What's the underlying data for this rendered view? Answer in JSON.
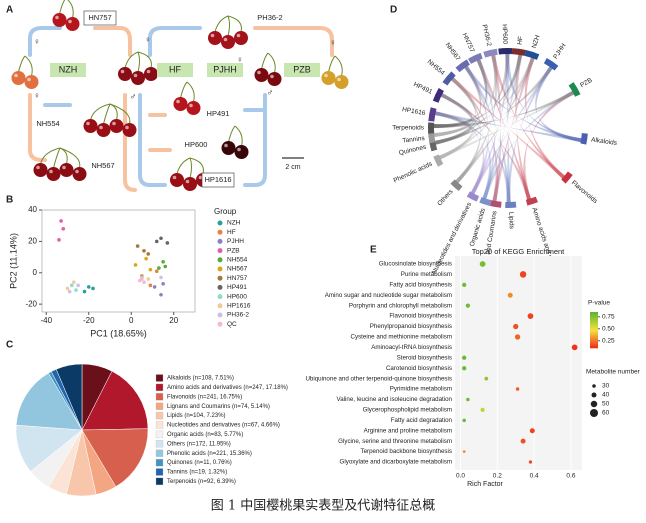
{
  "panel_a": {
    "letter": "A",
    "labels": [
      "HN757",
      "NZH",
      "HF",
      "PJHH",
      "PH36-2",
      "PZB",
      "NH554",
      "NH567",
      "HP491",
      "HP600",
      "HP1616"
    ],
    "symbols": [
      "♀",
      "♀",
      "♀",
      "♂",
      "♀",
      "♂",
      "♀"
    ],
    "scale_bar": "2 cm"
  },
  "panel_d": {
    "letter": "D",
    "genotypes": [
      "HP1616",
      "HP491",
      "NH554",
      "NH567",
      "HN757",
      "PH36-2",
      "HP600",
      "HF",
      "NZH",
      "PJHH",
      "PZB"
    ],
    "metabolites": [
      "Alkaloids",
      "Flavonoids",
      "Amino acids and derivatives",
      "Lipids",
      "Lignans and Coumarins",
      "Organic acids",
      "Nucleotides and derivatives",
      "Others",
      "Phenolic acids",
      "Quinones",
      "Tannins",
      "Terpenoids"
    ]
  },
  "caption": "图 1 中国樱桃果实表型及代谢特征总概",
  "chart_data": [
    {
      "type": "scatter",
      "panel": "B",
      "x_label": "PC1 (18.65%)",
      "y_label": "PC2 (11.14%)",
      "legend_title": "Group",
      "xlim": [
        -42,
        30
      ],
      "ylim": [
        -25,
        40
      ],
      "xticks": [
        -40,
        -20,
        0,
        20
      ],
      "yticks": [
        -20,
        0,
        20,
        40
      ],
      "series": [
        {
          "name": "NZH",
          "color": "#2aa198",
          "x": [
            -22,
            -20,
            -18
          ],
          "values": [
            -12,
            -9,
            -10
          ]
        },
        {
          "name": "HF",
          "color": "#e8833a",
          "x": [
            5,
            9,
            12
          ],
          "values": [
            -2,
            -8,
            1
          ]
        },
        {
          "name": "PJHH",
          "color": "#8c7fc6",
          "x": [
            11,
            14,
            15
          ],
          "values": [
            -9,
            -14,
            -7
          ]
        },
        {
          "name": "PZB",
          "color": "#e05fa6",
          "x": [
            -33,
            -32,
            -34
          ],
          "values": [
            33,
            28,
            21
          ]
        },
        {
          "name": "NH554",
          "color": "#5aaa3a",
          "x": [
            13,
            15,
            16
          ],
          "values": [
            3,
            7,
            4
          ]
        },
        {
          "name": "NH567",
          "color": "#d6a61e",
          "x": [
            2,
            7,
            9
          ],
          "values": [
            5,
            9,
            2
          ]
        },
        {
          "name": "HN757",
          "color": "#a07a3a",
          "x": [
            6,
            8,
            3
          ],
          "values": [
            14,
            12,
            17
          ]
        },
        {
          "name": "HP491",
          "color": "#666666",
          "x": [
            14,
            17,
            12
          ],
          "values": [
            22,
            19,
            20
          ]
        },
        {
          "name": "HP600",
          "color": "#8fdcc8",
          "x": [
            -28,
            -26,
            5
          ],
          "values": [
            -8,
            -11,
            -3
          ]
        },
        {
          "name": "HP1616",
          "color": "#f6c79a",
          "x": [
            -30,
            -27,
            8
          ],
          "values": [
            -10,
            -6,
            -4
          ]
        },
        {
          "name": "PH36-2",
          "color": "#c8c2e8",
          "x": [
            -29,
            -25,
            14
          ],
          "values": [
            -12,
            -8,
            -3
          ]
        },
        {
          "name": "QC",
          "color": "#f5b8d0",
          "x": [
            4,
            5,
            6
          ],
          "values": [
            -5,
            -4,
            -6
          ]
        }
      ]
    },
    {
      "type": "pie",
      "panel": "C",
      "categories": [
        "Alkaloids (n=108, 7.51%)",
        "Amino acids and derivatives (n=247, 17.18%)",
        "Flavonoids (n=241, 16.75%)",
        "Lignans and Coumarins (n=74, 5.14%)",
        "Lipids (n=104, 7.23%)",
        "Nucleotides and derivatives (n=67, 4.66%)",
        "Organic acids (n=83, 5.77%)",
        "Others (n=172, 11.95%)",
        "Phenolic acids (n=221, 15.36%)",
        "Quinones (n=11, 0.76%)",
        "Tannins (n=19, 1.32%)",
        "Terpenoids (n=92, 6.39%)"
      ],
      "values": [
        7.51,
        17.18,
        16.75,
        5.14,
        7.23,
        4.66,
        5.77,
        11.95,
        15.36,
        0.76,
        1.32,
        6.39
      ],
      "colors": [
        "#6b0f1a",
        "#b2182b",
        "#d6604d",
        "#f4a582",
        "#f7c6ab",
        "#fbe3d6",
        "#f2f2f2",
        "#d1e5f0",
        "#92c5de",
        "#4393c3",
        "#2166ac",
        "#0b3a66"
      ]
    },
    {
      "type": "dot",
      "panel": "E",
      "title": "Top20 of KEGG Enrichment",
      "x_label": "Rich Factor",
      "xlim": [
        -0.03,
        0.66
      ],
      "xticks": [
        {
          "value": 0,
          "label": "0.0"
        },
        0.2,
        0.4,
        0.6
      ],
      "categories": [
        "Glucosinolate biosynthesis",
        "Purine metabolism",
        "Fatty acid biosynthesis",
        "Amino sugar and nucleotide sugar metabolism",
        "Porphyrin and chlorophyll metabolism",
        "Flavonoid biosynthesis",
        "Phenylpropanoid biosynthesis",
        "Cysteine and methionine metabolism",
        "Aminoacyl-tRNA biosynthesis",
        "Steroid biosynthesis",
        "Carotenoid biosynthesis",
        "Ubiquinone and other terpenoid-quinone biosynthesis",
        "Pyrimidine metabolism",
        "Valine, leucine and isoleucine degradation",
        "Glycerophospholipid metabolism",
        "Fatty acid degradation",
        "Arginine and proline metabolism",
        "Glycine, serine and threonine metabolism",
        "Terpenoid backbone biosynthesis",
        "Glyoxylate and dicarboxylate metabolism"
      ],
      "values": [
        0.12,
        0.34,
        0.02,
        0.27,
        0.04,
        0.38,
        0.3,
        0.31,
        0.62,
        0.02,
        0.02,
        0.14,
        0.31,
        0.04,
        0.12,
        0.02,
        0.39,
        0.34,
        0.02,
        0.38
      ],
      "p_values": [
        0.78,
        0.15,
        0.8,
        0.3,
        0.8,
        0.15,
        0.18,
        0.22,
        0.12,
        0.82,
        0.82,
        0.72,
        0.2,
        0.8,
        0.6,
        0.82,
        0.15,
        0.18,
        0.3,
        0.15
      ],
      "counts": [
        45,
        50,
        35,
        40,
        35,
        45,
        42,
        42,
        45,
        35,
        35,
        32,
        30,
        30,
        35,
        30,
        40,
        40,
        25,
        28
      ],
      "color_title": "P-value",
      "colorlim": [
        0.1,
        0.85
      ],
      "colorticks": [
        0.75,
        {
          "value": 0.5,
          "label": "0.50"
        },
        0.25
      ],
      "colors": [
        "#ee2a1a",
        "#f5e13a",
        "#5cb531"
      ],
      "size_title": "Metabolite number",
      "size_ticks": [
        30,
        40,
        50,
        60
      ]
    }
  ]
}
